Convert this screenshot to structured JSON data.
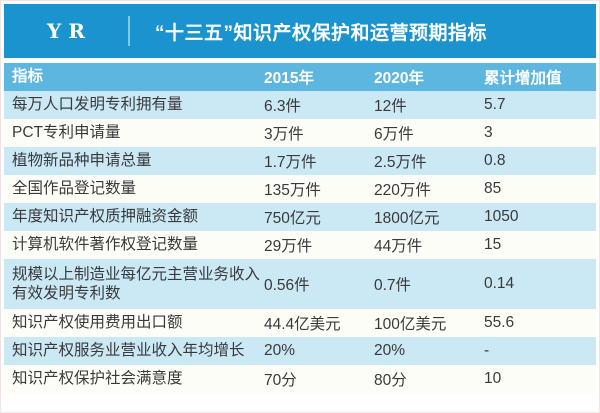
{
  "banner": {
    "logo": "YR",
    "title": "“十三五”知识产权保护和运营预期指标"
  },
  "table": {
    "header": {
      "indicator": "指标",
      "y2015": "2015年",
      "y2020": "2020年",
      "increase": "累计增加值"
    },
    "rows": [
      {
        "indicator": "每万人口发明专利拥有量",
        "y2015": "6.3件",
        "y2020": "12件",
        "increase": "5.7"
      },
      {
        "indicator": "PCT专利申请量",
        "y2015": "3万件",
        "y2020": "6万件",
        "increase": "3"
      },
      {
        "indicator": "植物新品种申请总量",
        "y2015": "1.7万件",
        "y2020": "2.5万件",
        "increase": "0.8"
      },
      {
        "indicator": "全国作品登记数量",
        "y2015": "135万件",
        "y2020": "220万件",
        "increase": "85"
      },
      {
        "indicator": "年度知识产权质押融资金额",
        "y2015": "750亿元",
        "y2020": "1800亿元",
        "increase": "1050"
      },
      {
        "indicator": "计算机软件著作权登记数量",
        "y2015": "29万件",
        "y2020": "44万件",
        "increase": "15"
      },
      {
        "indicator": "规模以上制造业每亿元主营业务收入有效发明专利数",
        "y2015": "0.56件",
        "y2020": "0.7件",
        "increase": "0.14"
      },
      {
        "indicator": "知识产权使用费用出口额",
        "y2015": "44.4亿美元",
        "y2020": "100亿美元",
        "increase": "55.6"
      },
      {
        "indicator": "知识产权服务业营业收入年均增长",
        "y2015": "20%",
        "y2020": "20%",
        "increase": "-"
      },
      {
        "indicator": "知识产权保护社会满意度",
        "y2015": "70分",
        "y2020": "80分",
        "increase": "10"
      }
    ]
  },
  "chart_data": {
    "type": "table",
    "title": "“十三五”知识产权保护和运营预期指标",
    "columns": [
      "指标",
      "2015年",
      "2020年",
      "累计增加值"
    ],
    "rows": [
      [
        "每万人口发明专利拥有量",
        "6.3件",
        "12件",
        "5.7"
      ],
      [
        "PCT专利申请量",
        "3万件",
        "6万件",
        "3"
      ],
      [
        "植物新品种申请总量",
        "1.7万件",
        "2.5万件",
        "0.8"
      ],
      [
        "全国作品登记数量",
        "135万件",
        "220万件",
        "85"
      ],
      [
        "年度知识产权质押融资金额",
        "750亿元",
        "1800亿元",
        "1050"
      ],
      [
        "计算机软件著作权登记数量",
        "29万件",
        "44万件",
        "15"
      ],
      [
        "规模以上制造业每亿元主营业务收入有效发明专利数",
        "0.56件",
        "0.7件",
        "0.14"
      ],
      [
        "知识产权使用费用出口额",
        "44.4亿美元",
        "100亿美元",
        "55.6"
      ],
      [
        "知识产权服务业营业收入年均增长",
        "20%",
        "20%",
        "-"
      ],
      [
        "知识产权保护社会满意度",
        "70分",
        "80分",
        "10"
      ]
    ]
  },
  "colors": {
    "banner_blue": "#1b93ce",
    "header_blue": "#5cb6df",
    "row_light_blue": "#cbe8f5",
    "row_white": "#fdfdf8",
    "text_dark": "#3a3a3a",
    "text_white": "#ffffff",
    "divider": "#7ecbe5"
  }
}
